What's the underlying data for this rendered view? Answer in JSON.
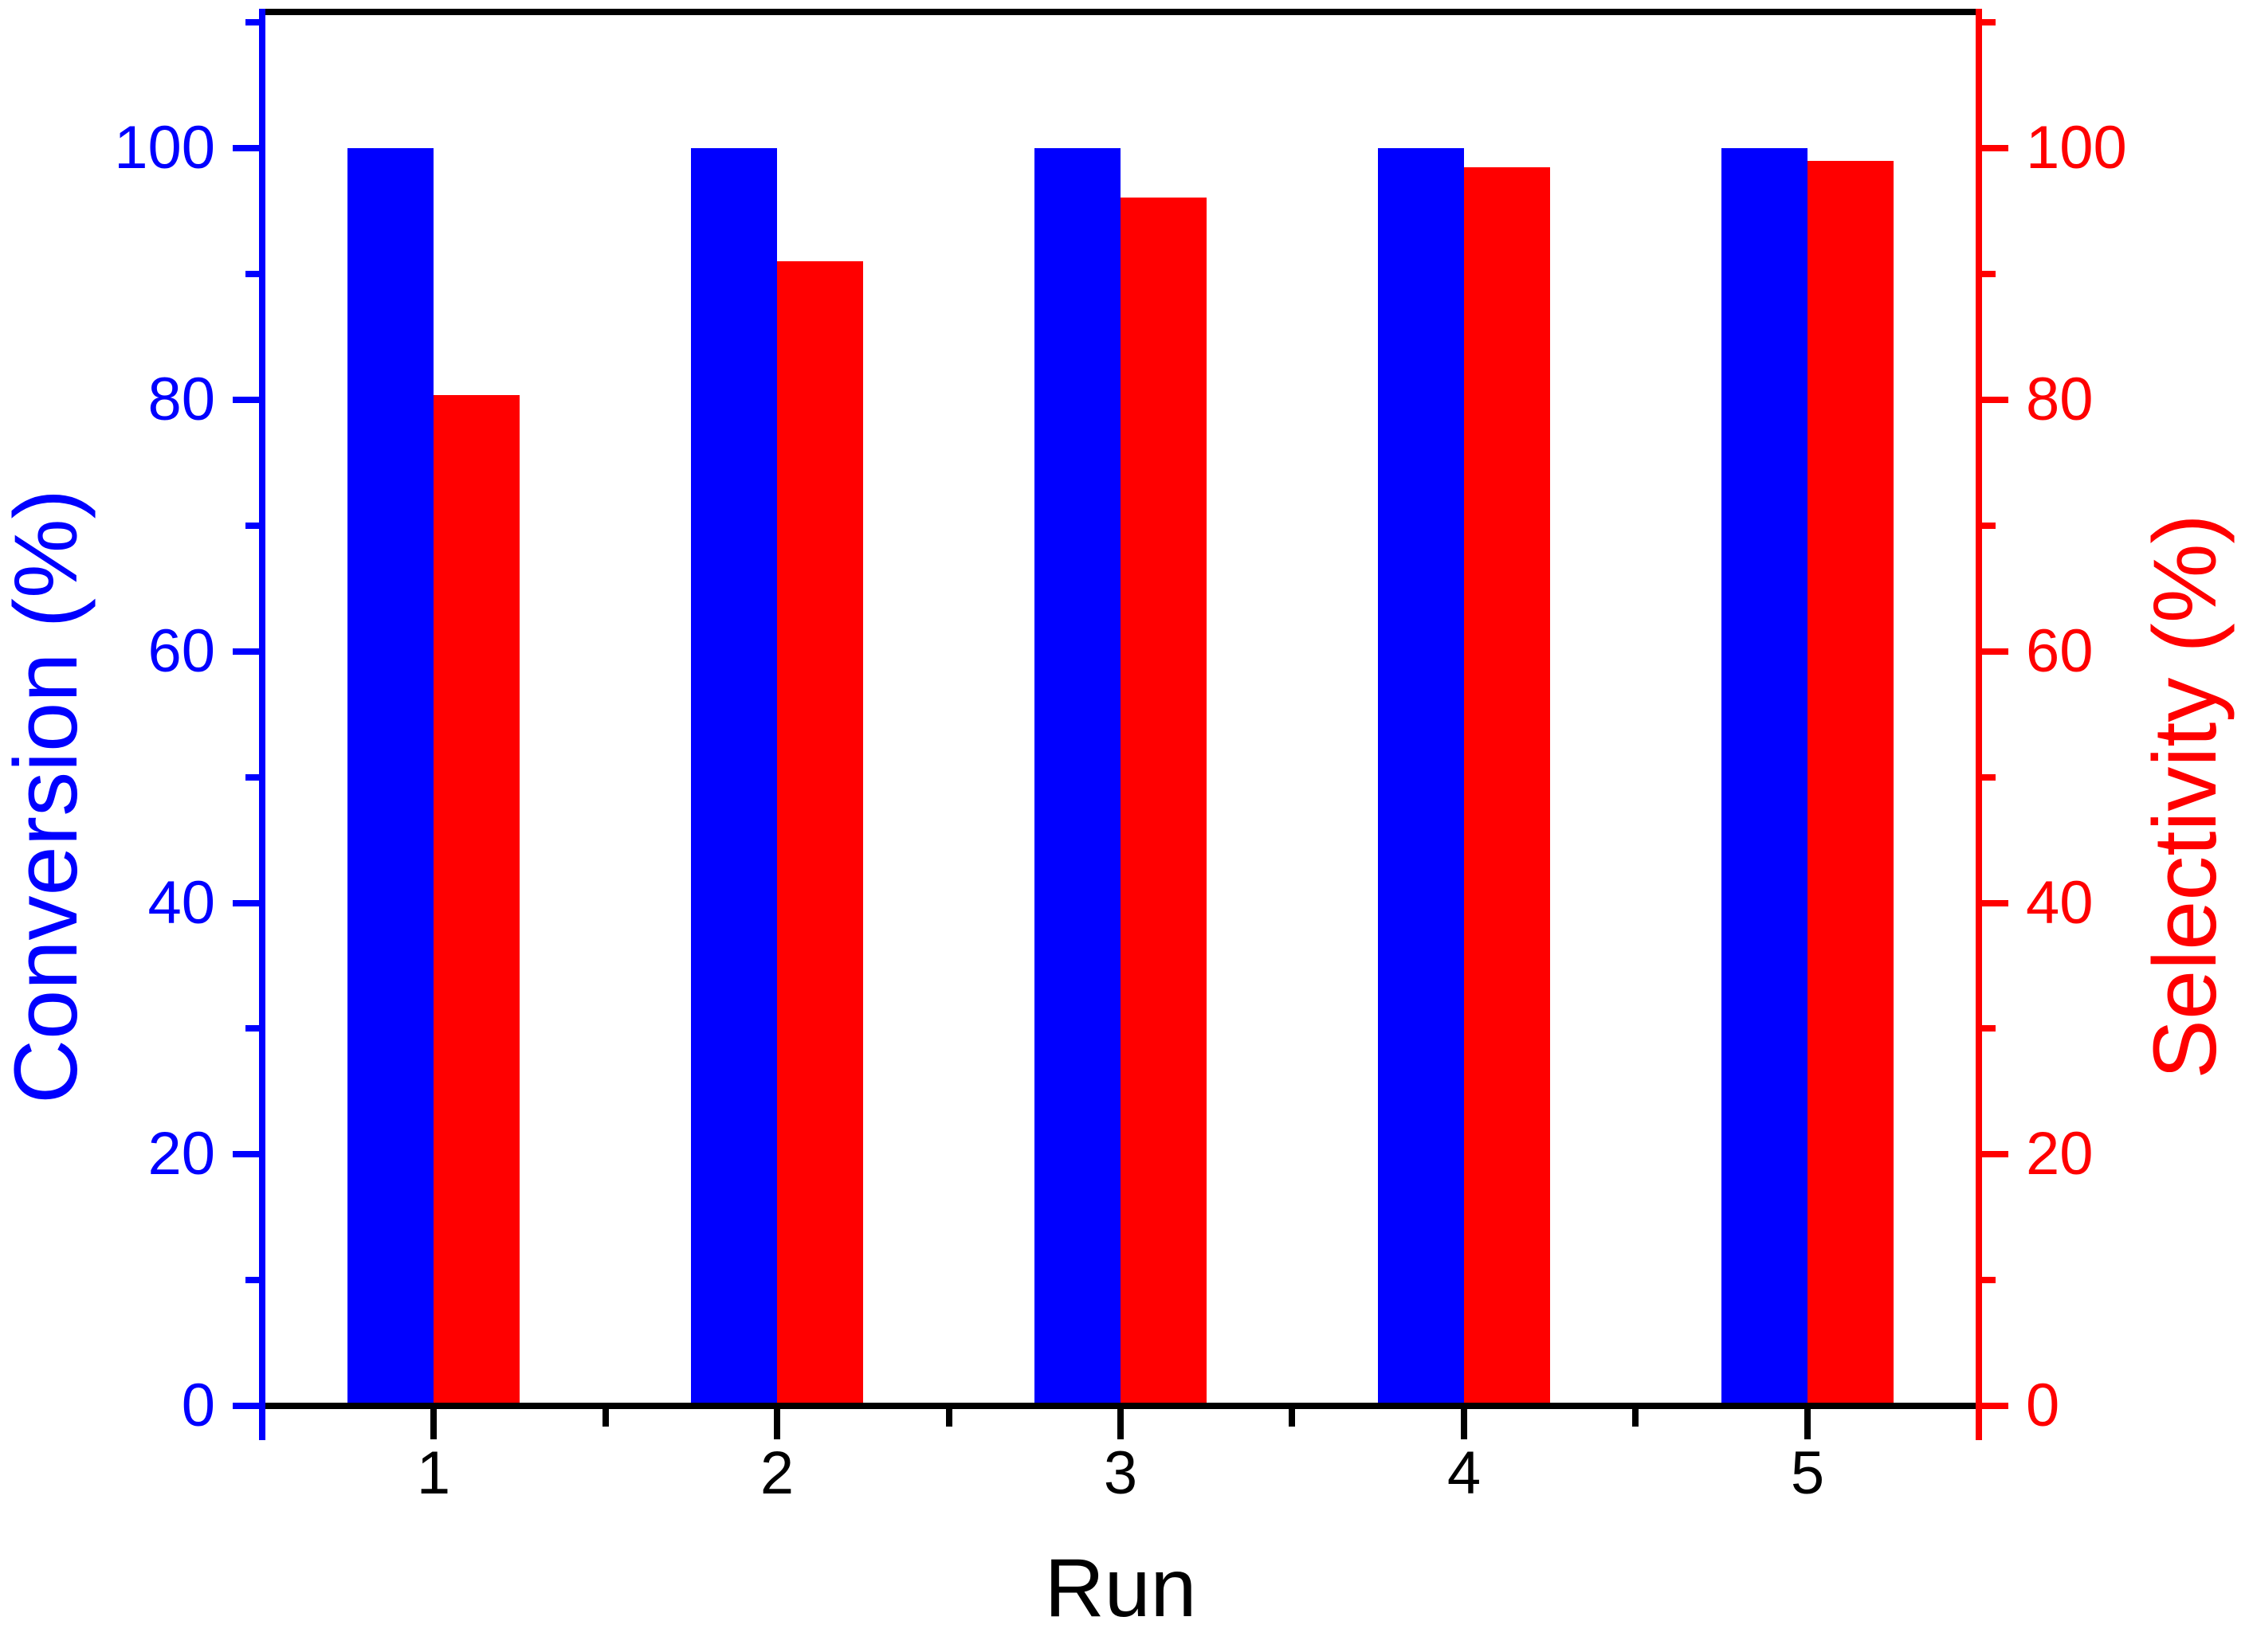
{
  "figure": {
    "background": "#FFFFFF",
    "frame_color": "#000000"
  },
  "chart_data": {
    "type": "bar",
    "title": "",
    "categories": [
      "1",
      "2",
      "3",
      "4",
      "5"
    ],
    "series": [
      {
        "name": "Conversion",
        "axis": "left",
        "color": "#0000FF",
        "values": [
          100,
          100,
          100,
          100,
          100
        ]
      },
      {
        "name": "Selectivity",
        "axis": "right",
        "color": "#FF0000",
        "values": [
          80.4,
          91,
          96.1,
          98.5,
          99
        ]
      }
    ],
    "x_axis": {
      "label": "Run",
      "color": "#000000",
      "range": [
        0.5,
        5.5
      ],
      "major_ticks": [
        1,
        2,
        3,
        4,
        5
      ],
      "tick_labels": [
        "1",
        "2",
        "3",
        "4",
        "5"
      ],
      "minor_ticks": [
        1.5,
        2.5,
        3.5,
        4.5
      ]
    },
    "left_axis": {
      "label": "Conversion (%)",
      "color": "#0000FF",
      "range": [
        0,
        110.6
      ],
      "major_ticks": [
        0,
        20,
        40,
        60,
        80,
        100
      ],
      "minor_ticks": [
        10,
        30,
        50,
        70,
        90,
        110
      ]
    },
    "right_axis": {
      "label": "Selectivity (%)",
      "color": "#FF0000",
      "range": [
        0,
        110.6
      ],
      "major_ticks": [
        0,
        20,
        40,
        60,
        80,
        100
      ],
      "minor_ticks": [
        10,
        30,
        50,
        70,
        90,
        110
      ]
    },
    "bar_width_units": 0.25,
    "grid": false,
    "legend": false
  }
}
